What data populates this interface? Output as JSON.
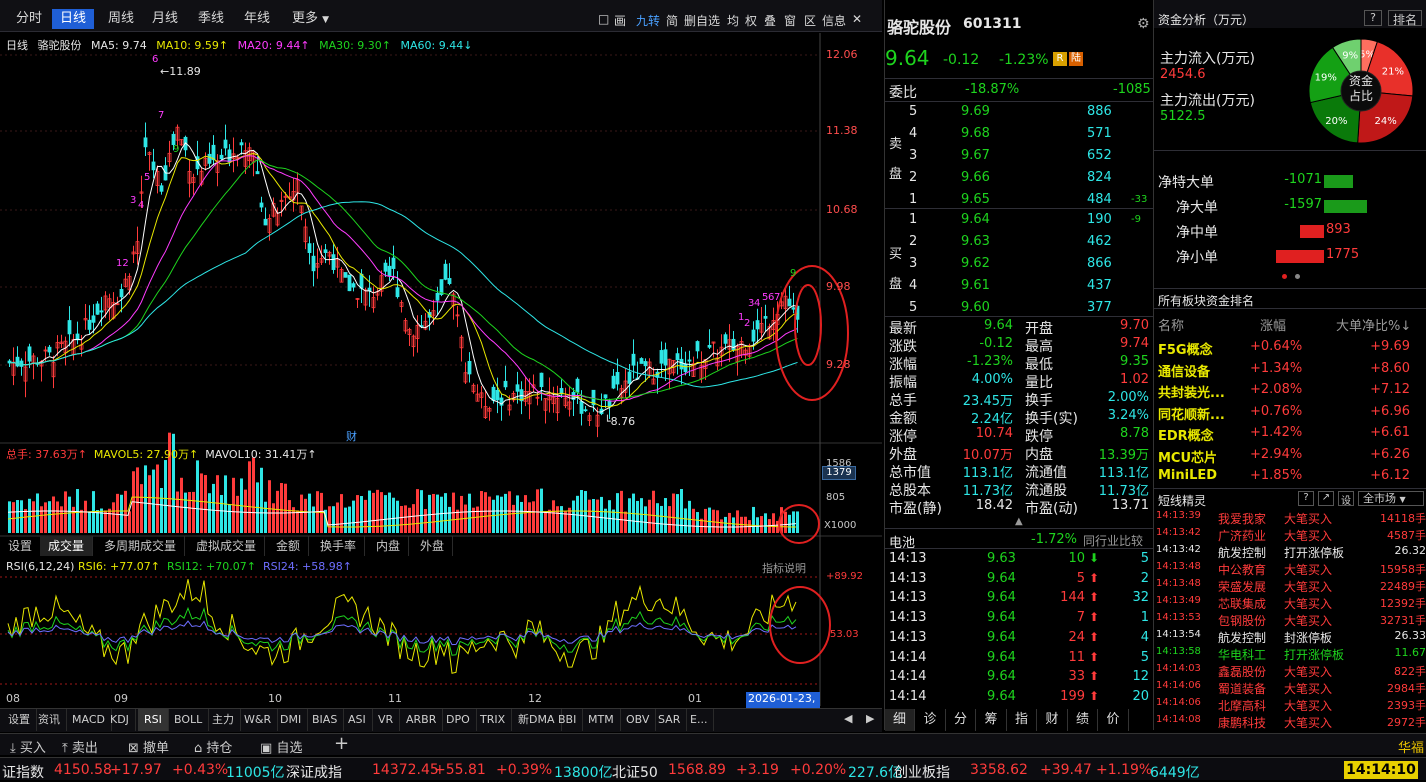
{
  "period_tabs": [
    "分时",
    "日线",
    "周线",
    "月线",
    "季线",
    "年线",
    "更多"
  ],
  "active_period": "日线",
  "toolbar_icons": [
    "□",
    "画",
    "九转",
    "简",
    "删自选",
    "均",
    "权",
    "叠",
    "窗",
    "区",
    "信息"
  ],
  "ma": {
    "label": "日线",
    "name": "骆驼股份",
    "ma5": "MA5: 9.74",
    "ma10": "MA10: 9.59↑",
    "ma20": "MA20: 9.44↑",
    "ma30": "MA30: 9.30↑",
    "ma60": "MA60: 9.44↓"
  },
  "price_axis": [
    "12.06",
    "11.38",
    "10.68",
    "9.98",
    "9.28"
  ],
  "high_label": "11.89",
  "low_label": "8.76",
  "cai_label": "财",
  "td_marks": [
    "6",
    "7",
    "5",
    "3",
    "4",
    "9",
    "12",
    "1",
    "2",
    "3",
    "4",
    "5",
    "6",
    "7",
    "9"
  ],
  "vol": {
    "zongshou": "总手: 37.63万↑",
    "mavol5": "MAVOL5: 27.90万↑",
    "mavol10": "MAVOL10: 31.41万↑",
    "axis_top": "1586",
    "axis_mid": "805",
    "current": "1379",
    "unit": "X1000"
  },
  "vol_tabs": [
    "设置",
    "成交量",
    "多周期成交量",
    "虚拟成交量",
    "金额",
    "换手率",
    "内盘",
    "外盘"
  ],
  "rsi": {
    "title": "RSI(6,12,24)",
    "rsi6": "RSI6: +77.07↑",
    "rsi12": "RSI12: +70.07↑",
    "rsi24": "RSI24: +58.98↑",
    "hint": "指标说明",
    "upper": "+89.92",
    "mid": "53.03"
  },
  "months": [
    "08",
    "09",
    "10",
    "11",
    "12",
    "01"
  ],
  "date_label": "2026-01-23,五",
  "indicator_tabs": [
    "设置",
    "资讯",
    "MACD",
    "KDJ",
    "RSI",
    "BOLL",
    "主力",
    "W&R",
    "DMI",
    "BIAS",
    "ASI",
    "VR",
    "ARBR",
    "DPO",
    "TRIX",
    "新DMA",
    "BBI",
    "MTM",
    "OBV",
    "SAR",
    "E..."
  ],
  "active_indicator": "RSI",
  "stock": {
    "name": "骆驼股份",
    "code": "601311",
    "price": "9.64",
    "change": "-0.12",
    "pct": "-1.23%"
  },
  "weibi": {
    "label": "委比",
    "pct": "-18.87%",
    "diff": "-1085"
  },
  "sell_label": [
    "卖",
    "盘"
  ],
  "buy_label": [
    "买",
    "盘"
  ],
  "asks": [
    {
      "lvl": "5",
      "price": "9.69",
      "vol": "886",
      "chg": ""
    },
    {
      "lvl": "4",
      "price": "9.68",
      "vol": "571",
      "chg": ""
    },
    {
      "lvl": "3",
      "price": "9.67",
      "vol": "652",
      "chg": ""
    },
    {
      "lvl": "2",
      "price": "9.66",
      "vol": "824",
      "chg": ""
    },
    {
      "lvl": "1",
      "price": "9.65",
      "vol": "484",
      "chg": "-33"
    }
  ],
  "bids": [
    {
      "lvl": "1",
      "price": "9.64",
      "vol": "190",
      "chg": "-9"
    },
    {
      "lvl": "2",
      "price": "9.63",
      "vol": "462",
      "chg": ""
    },
    {
      "lvl": "3",
      "price": "9.62",
      "vol": "866",
      "chg": ""
    },
    {
      "lvl": "4",
      "price": "9.61",
      "vol": "437",
      "chg": ""
    },
    {
      "lvl": "5",
      "price": "9.60",
      "vol": "377",
      "chg": ""
    }
  ],
  "stats": [
    [
      "最新",
      "9.64",
      "开盘",
      "9.70"
    ],
    [
      "涨跌",
      "-0.12",
      "最高",
      "9.74"
    ],
    [
      "涨幅",
      "-1.23%",
      "最低",
      "9.35"
    ],
    [
      "振幅",
      "4.00%",
      "量比",
      "1.02"
    ],
    [
      "总手",
      "23.45万",
      "换手",
      "2.00%"
    ],
    [
      "金额",
      "2.24亿",
      "换手(实)",
      "3.24%"
    ],
    [
      "涨停",
      "10.74",
      "跌停",
      "8.78"
    ],
    [
      "外盘",
      "10.07万",
      "内盘",
      "13.39万"
    ],
    [
      "总市值",
      "113.1亿",
      "流通值",
      "113.1亿"
    ],
    [
      "总股本",
      "11.73亿",
      "流通股",
      "11.73亿"
    ],
    [
      "市盈(静)",
      "18.42",
      "市盈(动)",
      "13.71"
    ]
  ],
  "industry": {
    "name": "电池",
    "pct": "-1.72%",
    "compare": "同行业比较"
  },
  "ticks": [
    [
      "14:13",
      "9.63",
      "10",
      "down",
      "5"
    ],
    [
      "14:13",
      "9.64",
      "5",
      "up",
      "2"
    ],
    [
      "14:13",
      "9.64",
      "144",
      "up",
      "32"
    ],
    [
      "14:13",
      "9.64",
      "7",
      "up",
      "1"
    ],
    [
      "14:13",
      "9.64",
      "24",
      "up",
      "4"
    ],
    [
      "14:14",
      "9.64",
      "11",
      "up",
      "5"
    ],
    [
      "14:14",
      "9.64",
      "33",
      "up",
      "12"
    ],
    [
      "14:14",
      "9.64",
      "199",
      "up",
      "20"
    ]
  ],
  "quote_tabs": [
    "细",
    "诊",
    "分",
    "筹",
    "指",
    "财",
    "绩",
    "价"
  ],
  "fund": {
    "title": "资金分析（万元）",
    "q": "?",
    "rank": "排名",
    "in_label": "主力流入(万元)",
    "in_val": "2454.6",
    "out_label": "主力流出(万元)",
    "out_val": "5122.5",
    "center": [
      "资金",
      "占比"
    ],
    "pie": [
      {
        "pct": 21,
        "label": "21%",
        "color": "#e8302a"
      },
      {
        "pct": 24,
        "label": "24%",
        "color": "#c01818"
      },
      {
        "pct": 20,
        "label": "20%",
        "color": "#0a7a0a"
      },
      {
        "pct": 19,
        "label": "19%",
        "color": "#14a014"
      },
      {
        "pct": 9,
        "label": "9%",
        "color": "#6fd06f"
      },
      {
        "pct": 5,
        "label": "5%",
        "color": "#ff6f5f"
      }
    ]
  },
  "netflow": [
    {
      "label": "净特大单",
      "val": "-1071",
      "amt": 1071,
      "dir": "neg"
    },
    {
      "label": "净大单",
      "val": "-1597",
      "amt": 1597,
      "dir": "neg"
    },
    {
      "label": "净中单",
      "val": "893",
      "amt": 893,
      "dir": "pos"
    },
    {
      "label": "净小单",
      "val": "1775",
      "amt": 1775,
      "dir": "pos"
    }
  ],
  "sector": {
    "title": "所有板块资金排名",
    "cols": [
      "名称",
      "涨幅",
      "大单净比%"
    ],
    "rows": [
      [
        "F5G概念",
        "+0.64%",
        "+9.69"
      ],
      [
        "通信设备",
        "+1.34%",
        "+8.60"
      ],
      [
        "共封装光...",
        "+2.08%",
        "+7.12"
      ],
      [
        "同花顺新...",
        "+0.76%",
        "+6.96"
      ],
      [
        "EDR概念",
        "+1.42%",
        "+6.61"
      ],
      [
        "MCU芯片",
        "+2.94%",
        "+6.26"
      ],
      [
        "MiniLED",
        "+1.85%",
        "+6.12"
      ]
    ]
  },
  "short": {
    "title": "短线精灵",
    "market": "全市场",
    "rows": [
      [
        "14:13:39",
        "我爱我家",
        "大笔买入",
        "14118手",
        "r"
      ],
      [
        "14:13:42",
        "广济药业",
        "大笔买入",
        "4587手",
        "r"
      ],
      [
        "14:13:42",
        "航发控制",
        "打开涨停板",
        "26.32",
        "y"
      ],
      [
        "14:13:48",
        "中公教育",
        "大笔买入",
        "15958手",
        "r"
      ],
      [
        "14:13:48",
        "荣盛发展",
        "大笔买入",
        "22489手",
        "r"
      ],
      [
        "14:13:49",
        "芯联集成",
        "大笔买入",
        "12392手",
        "r"
      ],
      [
        "14:13:53",
        "包钢股份",
        "大笔买入",
        "32731手",
        "r"
      ],
      [
        "14:13:54",
        "航发控制",
        "封涨停板",
        "26.33",
        "y"
      ],
      [
        "14:13:58",
        "华电科工",
        "打开涨停板",
        "11.67",
        "g"
      ],
      [
        "14:14:03",
        "鑫磊股份",
        "大笔买入",
        "822手",
        "r"
      ],
      [
        "14:14:06",
        "蜀道装备",
        "大笔买入",
        "2984手",
        "r"
      ],
      [
        "14:14:06",
        "北摩高科",
        "大笔买入",
        "2393手",
        "r"
      ],
      [
        "14:14:08",
        "康鹏科技",
        "大笔买入",
        "2972手",
        "r"
      ]
    ]
  },
  "trade": [
    "买入",
    "卖出",
    "撤单",
    "持仓",
    "自选"
  ],
  "broker": "华福",
  "index_ticker": [
    {
      "name": "证指数",
      "val": "4150.58",
      "chg": "+17.97",
      "pct": "+0.43%",
      "amt": "11005亿"
    },
    {
      "name": "深证成指",
      "val": "14372.45",
      "chg": "+55.81",
      "pct": "+0.39%",
      "amt": "13800亿"
    },
    {
      "name": "北证50",
      "val": "1568.89",
      "chg": "+3.19",
      "pct": "+0.20%",
      "amt": "227.6亿"
    },
    {
      "name": "创业板指",
      "val": "3358.62",
      "chg": "+39.47",
      "pct": "+1.19%",
      "amt": "6449亿"
    }
  ],
  "clock": "14:14:10"
}
